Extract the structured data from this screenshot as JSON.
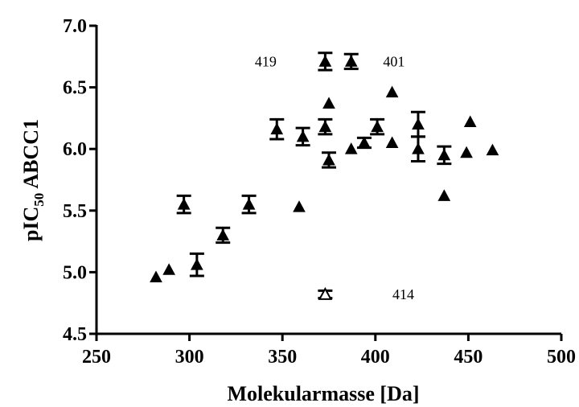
{
  "chart_data": {
    "type": "scatter",
    "xlabel": "Molekularmasse [Da]",
    "ylabel_main": "pIC",
    "ylabel_sub": "50",
    "ylabel_rest": " ABCC1",
    "xlim": [
      250,
      500
    ],
    "ylim": [
      4.5,
      7.0
    ],
    "x_ticks": [
      "250",
      "300",
      "350",
      "400",
      "450",
      "500"
    ],
    "y_ticks": [
      "4.5",
      "5.0",
      "5.5",
      "6.0",
      "6.5",
      "7.0"
    ],
    "grid": false,
    "marker": "triangle",
    "series": [
      {
        "points": [
          {
            "x": 282,
            "y": 4.96
          },
          {
            "x": 289,
            "y": 5.02
          },
          {
            "x": 297,
            "y": 5.55,
            "err": 0.07
          },
          {
            "x": 304,
            "y": 5.06,
            "err": 0.09
          },
          {
            "x": 318,
            "y": 5.3,
            "err": 0.06
          },
          {
            "x": 332,
            "y": 5.55,
            "err": 0.07
          },
          {
            "x": 347,
            "y": 6.16,
            "err": 0.08
          },
          {
            "x": 359,
            "y": 5.53
          },
          {
            "x": 361,
            "y": 6.1,
            "err": 0.07
          },
          {
            "x": 373,
            "y": 6.18,
            "err": 0.06
          },
          {
            "x": 373,
            "y": 6.71,
            "err": 0.07
          },
          {
            "x": 375,
            "y": 5.91,
            "err": 0.06
          },
          {
            "x": 375,
            "y": 6.37
          },
          {
            "x": 387,
            "y": 6.71,
            "err": 0.06
          },
          {
            "x": 387,
            "y": 6.0
          },
          {
            "x": 394,
            "y": 6.05,
            "err": 0.04
          },
          {
            "x": 401,
            "y": 6.18,
            "err": 0.06
          },
          {
            "x": 409,
            "y": 6.46
          },
          {
            "x": 409,
            "y": 6.05
          },
          {
            "x": 423,
            "y": 6.2,
            "err": 0.1
          },
          {
            "x": 423,
            "y": 6.0,
            "err": 0.1
          },
          {
            "x": 437,
            "y": 5.95,
            "err": 0.07
          },
          {
            "x": 437,
            "y": 5.62
          },
          {
            "x": 449,
            "y": 5.97
          },
          {
            "x": 451,
            "y": 6.22
          },
          {
            "x": 463,
            "y": 5.99
          }
        ]
      },
      {
        "hollow": true,
        "points": [
          {
            "x": 373,
            "y": 4.82,
            "err": 0.03
          }
        ]
      }
    ],
    "annotations": [
      {
        "text": "419",
        "x": 341,
        "y": 6.71
      },
      {
        "text": "401",
        "x": 410,
        "y": 6.71
      },
      {
        "text": "414",
        "x": 415,
        "y": 4.82
      }
    ]
  }
}
